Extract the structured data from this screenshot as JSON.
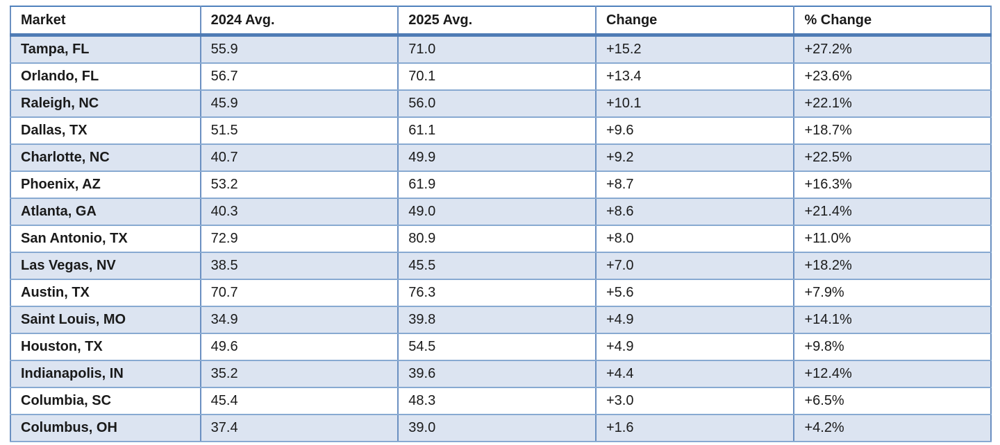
{
  "chart_data": {
    "type": "table",
    "title": "",
    "columns": [
      "Market",
      "2024 Avg.",
      "2025 Avg.",
      "Change",
      "% Change"
    ],
    "rows": [
      {
        "market": "Tampa, FL",
        "avg_2024": "55.9",
        "avg_2025": "71.0",
        "change": "+15.2",
        "pct_change": "+27.2%"
      },
      {
        "market": "Orlando, FL",
        "avg_2024": "56.7",
        "avg_2025": "70.1",
        "change": "+13.4",
        "pct_change": "+23.6%"
      },
      {
        "market": "Raleigh, NC",
        "avg_2024": "45.9",
        "avg_2025": "56.0",
        "change": "+10.1",
        "pct_change": "+22.1%"
      },
      {
        "market": "Dallas, TX",
        "avg_2024": "51.5",
        "avg_2025": "61.1",
        "change": "+9.6",
        "pct_change": "+18.7%"
      },
      {
        "market": "Charlotte, NC",
        "avg_2024": "40.7",
        "avg_2025": "49.9",
        "change": "+9.2",
        "pct_change": "+22.5%"
      },
      {
        "market": "Phoenix, AZ",
        "avg_2024": "53.2",
        "avg_2025": "61.9",
        "change": "+8.7",
        "pct_change": "+16.3%"
      },
      {
        "market": "Atlanta, GA",
        "avg_2024": "40.3",
        "avg_2025": "49.0",
        "change": "+8.6",
        "pct_change": "+21.4%"
      },
      {
        "market": "San Antonio, TX",
        "avg_2024": "72.9",
        "avg_2025": "80.9",
        "change": "+8.0",
        "pct_change": "+11.0%"
      },
      {
        "market": "Las Vegas, NV",
        "avg_2024": "38.5",
        "avg_2025": "45.5",
        "change": "+7.0",
        "pct_change": "+18.2%"
      },
      {
        "market": "Austin, TX",
        "avg_2024": "70.7",
        "avg_2025": "76.3",
        "change": "+5.6",
        "pct_change": "+7.9%"
      },
      {
        "market": "Saint Louis, MO",
        "avg_2024": "34.9",
        "avg_2025": "39.8",
        "change": "+4.9",
        "pct_change": "+14.1%"
      },
      {
        "market": "Houston, TX",
        "avg_2024": "49.6",
        "avg_2025": "54.5",
        "change": "+4.9",
        "pct_change": "+9.8%"
      },
      {
        "market": "Indianapolis, IN",
        "avg_2024": "35.2",
        "avg_2025": "39.6",
        "change": "+4.4",
        "pct_change": "+12.4%"
      },
      {
        "market": "Columbia, SC",
        "avg_2024": "45.4",
        "avg_2025": "48.3",
        "change": "+3.0",
        "pct_change": "+6.5%"
      },
      {
        "market": "Columbus, OH",
        "avg_2024": "37.4",
        "avg_2025": "39.0",
        "change": "+1.6",
        "pct_change": "+4.2%"
      }
    ],
    "layout_hints": {
      "banded_rows": true,
      "banded_row_fill": "#dce4f1",
      "border_color": "#4f81bd",
      "inner_border_color": "#6b90c1",
      "header_rule_color": "#4f7cb5",
      "text_color": "#1a1a1a",
      "first_banded_row_index": 0
    }
  }
}
